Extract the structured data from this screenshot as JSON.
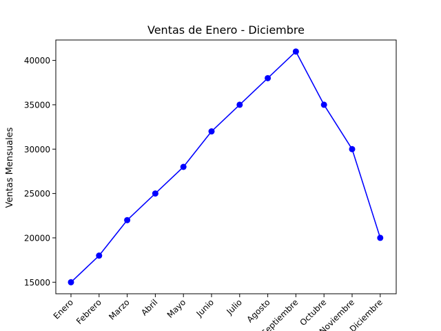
{
  "chart_data": {
    "type": "line",
    "title": "Ventas de Enero - Diciembre",
    "xlabel": "",
    "ylabel": "Ventas Mensuales",
    "categories": [
      "Enero",
      "Febrero",
      "Marzo",
      "Abril",
      "Mayo",
      "Junio",
      "Julio",
      "Agosto",
      "Septiembre",
      "Octubre",
      "Noviembre",
      "Diciembre"
    ],
    "series": [
      {
        "values": [
          15000,
          18000,
          22000,
          25000,
          28000,
          32000,
          35000,
          38000,
          41000,
          35000,
          30000,
          20000
        ]
      }
    ],
    "ylim": [
      13700,
      42300
    ],
    "yticks": [
      15000,
      20000,
      25000,
      30000,
      35000,
      40000
    ],
    "ytick_labels": [
      "15000",
      "20000",
      "25000",
      "30000",
      "35000",
      "40000"
    ],
    "grid": false,
    "line_color": "#0000ff",
    "marker": "circle",
    "xtick_rotation_deg": 45
  }
}
